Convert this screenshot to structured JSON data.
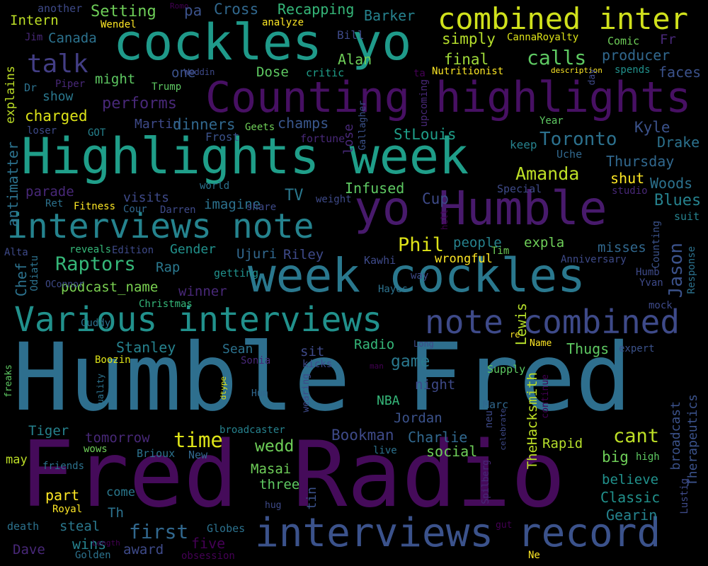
{
  "words": [
    {
      "text": "Humble Fred",
      "color": "#2e6f8e"
    },
    {
      "text": "Fred Radio",
      "color": "#450b5a"
    },
    {
      "text": "Highlights week",
      "color": "#1f9e89"
    },
    {
      "text": "Counting highlights",
      "color": "#471063"
    },
    {
      "text": "cockles yo",
      "color": "#1f9a8a"
    },
    {
      "text": "week cockles",
      "color": "#2a788e"
    },
    {
      "text": "yo Humble",
      "color": "#481a6c"
    },
    {
      "text": "Various interviews",
      "color": "#21918c"
    },
    {
      "text": "interviews note",
      "color": "#25838e"
    },
    {
      "text": "interviews record",
      "color": "#3b528b"
    },
    {
      "text": "combined inter",
      "color": "#d0e11c"
    },
    {
      "text": "note combined",
      "color": "#3e4a89"
    },
    {
      "text": "talk",
      "color": "#433e85"
    },
    {
      "text": "calls",
      "color": "#5ec962"
    },
    {
      "text": "Raptors",
      "color": "#35b779"
    },
    {
      "text": "Toronto",
      "color": "#2c718e"
    },
    {
      "text": "Phil",
      "color": "#dde318"
    },
    {
      "text": "Amanda",
      "color": "#bddf26"
    },
    {
      "text": "Jason",
      "color": "#3b528b"
    },
    {
      "text": "time",
      "color": "#dde318"
    },
    {
      "text": "cant",
      "color": "#bddf26"
    },
    {
      "text": "first",
      "color": "#31688e"
    },
    {
      "text": "wedd",
      "color": "#6ece58"
    },
    {
      "text": "game",
      "color": "#2a788e"
    },
    {
      "text": "Setting",
      "color": "#6ece58"
    },
    {
      "text": "Cross",
      "color": "#31688e"
    },
    {
      "text": "Recapping",
      "color": "#35b779"
    },
    {
      "text": "Barker",
      "color": "#26828e"
    },
    {
      "text": "Intern",
      "color": "#bddf26"
    },
    {
      "text": "Canada",
      "color": "#2c728e"
    },
    {
      "text": "simply",
      "color": "#b5de2b"
    },
    {
      "text": "final",
      "color": "#9fda3a"
    },
    {
      "text": "producer",
      "color": "#31688e"
    },
    {
      "text": "faces",
      "color": "#3b528b"
    },
    {
      "text": "might",
      "color": "#5ec962"
    },
    {
      "text": "one",
      "color": "#3b528b"
    },
    {
      "text": "Dose",
      "color": "#5ec962"
    },
    {
      "text": "Alan",
      "color": "#6ece58"
    },
    {
      "text": "performs",
      "color": "#482878"
    },
    {
      "text": "show",
      "color": "#2a788e"
    },
    {
      "text": "charged",
      "color": "#dde318"
    },
    {
      "text": "Martin",
      "color": "#3e4a89"
    },
    {
      "text": "dinners",
      "color": "#31688e"
    },
    {
      "text": "champs",
      "color": "#39568c"
    },
    {
      "text": "StLouis",
      "color": "#1f9e89"
    },
    {
      "text": "Kyle",
      "color": "#3b528b"
    },
    {
      "text": "Drake",
      "color": "#2c728e"
    },
    {
      "text": "Thursday",
      "color": "#31688e"
    },
    {
      "text": "shut",
      "color": "#fde725"
    },
    {
      "text": "Woods",
      "color": "#2c728e"
    },
    {
      "text": "Blues",
      "color": "#26828e"
    },
    {
      "text": "parade",
      "color": "#482878"
    },
    {
      "text": "visits",
      "color": "#3e4a89"
    },
    {
      "text": "imagine",
      "color": "#2c728e"
    },
    {
      "text": "TV",
      "color": "#2a788e"
    },
    {
      "text": "Infused",
      "color": "#5ec962"
    },
    {
      "text": "Cup",
      "color": "#3e4a89"
    },
    {
      "text": "Gender",
      "color": "#21918c"
    },
    {
      "text": "Rap",
      "color": "#2a788e"
    },
    {
      "text": "Ujuri",
      "color": "#31688e"
    },
    {
      "text": "Riley",
      "color": "#3e4a89"
    },
    {
      "text": "people",
      "color": "#26828e"
    },
    {
      "text": "expla",
      "color": "#6ece58"
    },
    {
      "text": "misses",
      "color": "#31688e"
    },
    {
      "text": "wrongful",
      "color": "#fde725"
    },
    {
      "text": "podcast_name",
      "color": "#7ad151"
    },
    {
      "text": "winner",
      "color": "#482878"
    },
    {
      "text": "Chef",
      "color": "#2c728e"
    },
    {
      "text": "Lewis",
      "color": "#b5de2b"
    },
    {
      "text": "Sean",
      "color": "#2c728e"
    },
    {
      "text": "Radio",
      "color": "#35b779"
    },
    {
      "text": "Stanley",
      "color": "#26828e"
    },
    {
      "text": "Thugs",
      "color": "#5ec962"
    },
    {
      "text": "sit",
      "color": "#3e4a89"
    },
    {
      "text": "night",
      "color": "#3e4a89"
    },
    {
      "text": "NBA",
      "color": "#35b779"
    },
    {
      "text": "Jordan",
      "color": "#3b528b"
    },
    {
      "text": "Charlie",
      "color": "#31688e"
    },
    {
      "text": "social",
      "color": "#6ece58"
    },
    {
      "text": "Bookman",
      "color": "#3e4a89"
    },
    {
      "text": "Tiger",
      "color": "#26828e"
    },
    {
      "text": "tomorrow",
      "color": "#482878"
    },
    {
      "text": "Rapid",
      "color": "#b5de2b"
    },
    {
      "text": "big",
      "color": "#6ece58"
    },
    {
      "text": "Masai",
      "color": "#6ece58"
    },
    {
      "text": "three",
      "color": "#5ec962"
    },
    {
      "text": "part",
      "color": "#fde725"
    },
    {
      "text": "steal",
      "color": "#2a788e"
    },
    {
      "text": "believe",
      "color": "#21918c"
    },
    {
      "text": "Classic",
      "color": "#21918c"
    },
    {
      "text": "Gearin",
      "color": "#25838e"
    },
    {
      "text": "award",
      "color": "#3e4a89"
    },
    {
      "text": "wins",
      "color": "#26828e"
    },
    {
      "text": "five",
      "color": "#440154"
    },
    {
      "text": "Dave",
      "color": "#482878"
    },
    {
      "text": "Th",
      "color": "#2c728e"
    },
    {
      "text": "come",
      "color": "#2a788e"
    },
    {
      "text": "may",
      "color": "#bddf26"
    },
    {
      "text": "TheHacksmith",
      "color": "#bddf26"
    },
    {
      "text": "broadcast",
      "color": "#3b528b"
    },
    {
      "text": "Therapeutics",
      "color": "#3b528b"
    },
    {
      "text": "antimatter",
      "color": "#2c728e"
    },
    {
      "text": "explains",
      "color": "#bddf26"
    },
    {
      "text": "lose",
      "color": "#482878"
    },
    {
      "text": "another",
      "color": "#3e4a89"
    },
    {
      "text": "Wendel",
      "color": "#fde725"
    },
    {
      "text": "Romo",
      "color": "#440154"
    },
    {
      "text": "pa",
      "color": "#3b528b"
    },
    {
      "text": "analyze",
      "color": "#fde725"
    },
    {
      "text": "Bill",
      "color": "#3e4a89"
    },
    {
      "text": "CannaRoyalty",
      "color": "#dde318"
    },
    {
      "text": "Comic",
      "color": "#6ece58"
    },
    {
      "text": "Fr",
      "color": "#482878"
    },
    {
      "text": "Jim",
      "color": "#482878"
    },
    {
      "text": "Weddin",
      "color": "#3e4a89"
    },
    {
      "text": "critic",
      "color": "#1f9e89"
    },
    {
      "text": "ta",
      "color": "#440154"
    },
    {
      "text": "Nutritionist",
      "color": "#fde725"
    },
    {
      "text": "description",
      "color": "#fde725"
    },
    {
      "text": "spends",
      "color": "#21918c"
    },
    {
      "text": "day",
      "color": "#3e4a89"
    },
    {
      "text": "Dr",
      "color": "#2c728e"
    },
    {
      "text": "Piper",
      "color": "#482878"
    },
    {
      "text": "Trump",
      "color": "#5ec962"
    },
    {
      "text": "upcoming",
      "color": "#482878"
    },
    {
      "text": "Gallagher",
      "color": "#3b528b"
    },
    {
      "text": "loser",
      "color": "#3e4a89"
    },
    {
      "text": "GOT",
      "color": "#26828e"
    },
    {
      "text": "Geets",
      "color": "#6ece58"
    },
    {
      "text": "Frost",
      "color": "#3b528b"
    },
    {
      "text": "fortune",
      "color": "#482878"
    },
    {
      "text": "Year",
      "color": "#5ec962"
    },
    {
      "text": "keep",
      "color": "#26828e"
    },
    {
      "text": "Uche",
      "color": "#31688e"
    },
    {
      "text": "world",
      "color": "#2c728e"
    },
    {
      "text": "share",
      "color": "#3e4a89"
    },
    {
      "text": "studio",
      "color": "#482878"
    },
    {
      "text": "Special",
      "color": "#3e4a89"
    },
    {
      "text": "weight",
      "color": "#3e4a89"
    },
    {
      "text": "Ret",
      "color": "#2c728e"
    },
    {
      "text": "Fitness",
      "color": "#fde725"
    },
    {
      "text": "Cour",
      "color": "#31688e"
    },
    {
      "text": "Darren",
      "color": "#3e4a89"
    },
    {
      "text": "hell",
      "color": "#440154"
    },
    {
      "text": "suit",
      "color": "#26828e"
    },
    {
      "text": "Counting",
      "color": "#3b528b"
    },
    {
      "text": "Alta",
      "color": "#3e4a89"
    },
    {
      "text": "reveals",
      "color": "#35b779"
    },
    {
      "text": "Edition",
      "color": "#3e4a89"
    },
    {
      "text": "Tim",
      "color": "#6ece58"
    },
    {
      "text": "Response",
      "color": "#2c728e"
    },
    {
      "text": "Odiatu",
      "color": "#2c728e"
    },
    {
      "text": "getting",
      "color": "#21918c"
    },
    {
      "text": "Kawhi",
      "color": "#3e4a89"
    },
    {
      "text": "way",
      "color": "#3e4a89"
    },
    {
      "text": "Anniversary",
      "color": "#3e4a89"
    },
    {
      "text": "Humb",
      "color": "#3e4a89"
    },
    {
      "text": "Yvan",
      "color": "#3e4a89"
    },
    {
      "text": "OConnor",
      "color": "#3e4a89"
    },
    {
      "text": "Christmas",
      "color": "#35b779"
    },
    {
      "text": "Hayes",
      "color": "#2c728e"
    },
    {
      "text": "mock",
      "color": "#3e4a89"
    },
    {
      "text": "Cuddy",
      "color": "#2c728e"
    },
    {
      "text": "re",
      "color": "#fde725"
    },
    {
      "text": "Name",
      "color": "#fde725"
    },
    {
      "text": "Long",
      "color": "#3e4a89"
    },
    {
      "text": "expert",
      "color": "#3b528b"
    },
    {
      "text": "freaks",
      "color": "#5ec962"
    },
    {
      "text": "Boozin",
      "color": "#dde318"
    },
    {
      "text": "Sonia",
      "color": "#482878"
    },
    {
      "text": "kicks",
      "color": "#3e4a89"
    },
    {
      "text": "man",
      "color": "#440154"
    },
    {
      "text": "Supply",
      "color": "#5ec962"
    },
    {
      "text": "continue",
      "color": "#440154"
    },
    {
      "text": "quality",
      "color": "#2c728e"
    },
    {
      "text": "dtype",
      "color": "#dde318"
    },
    {
      "text": "Hum",
      "color": "#31688e"
    },
    {
      "text": "wearing",
      "color": "#3e4a89"
    },
    {
      "text": "Marc",
      "color": "#31688e"
    },
    {
      "text": "celebrate",
      "color": "#3e4a89"
    },
    {
      "text": "neu",
      "color": "#3e4a89"
    },
    {
      "text": "broadcaster",
      "color": "#26828e"
    },
    {
      "text": "wows",
      "color": "#6ece58"
    },
    {
      "text": "Brioux",
      "color": "#2c728e"
    },
    {
      "text": "New",
      "color": "#31688e"
    },
    {
      "text": "live",
      "color": "#2c728e"
    },
    {
      "text": "friends",
      "color": "#2c728e"
    },
    {
      "text": "high",
      "color": "#5ec962"
    },
    {
      "text": "Spilberg",
      "color": "#482878"
    },
    {
      "text": "Lustig",
      "color": "#3e4a89"
    },
    {
      "text": "Royal",
      "color": "#fde725"
    },
    {
      "text": "tin",
      "color": "#3b528b"
    },
    {
      "text": "hug",
      "color": "#3e4a89"
    },
    {
      "text": "death",
      "color": "#2c728e"
    },
    {
      "text": "Globes",
      "color": "#2c728e"
    },
    {
      "text": "gut",
      "color": "#440154"
    },
    {
      "text": "Length",
      "color": "#440154"
    },
    {
      "text": "Golden",
      "color": "#2c728e"
    },
    {
      "text": "Ne",
      "color": "#fde725"
    },
    {
      "text": "obsession",
      "color": "#440154"
    }
  ]
}
